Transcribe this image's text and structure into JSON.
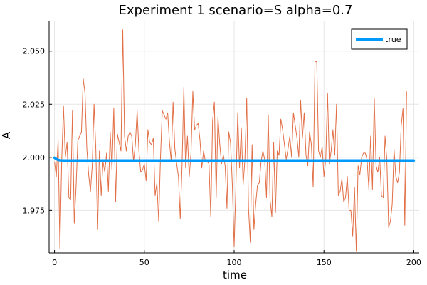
{
  "chart_data": {
    "type": "line",
    "title": "Experiment 1  scenario=S  alpha=0.7",
    "xlabel": "time",
    "ylabel": "A",
    "xlim": [
      -3,
      203
    ],
    "ylim": [
      1.955,
      2.064
    ],
    "x_ticks": [
      0,
      50,
      100,
      150,
      200
    ],
    "x_tick_labels": [
      "0",
      "50",
      "100",
      "150",
      "200"
    ],
    "y_ticks": [
      1.975,
      2.0,
      2.025,
      2.05
    ],
    "y_tick_labels": [
      "1.975",
      "2.000",
      "2.025",
      "2.050"
    ],
    "grid": true,
    "legend_position": "top-right",
    "series": [
      {
        "name": "true",
        "color": "#009AFA",
        "x": [
          0,
          1,
          2,
          3,
          5,
          10,
          20,
          50,
          100,
          150,
          200
        ],
        "values": [
          1.9998,
          1.9992,
          1.9988,
          1.9986,
          1.9985,
          1.9985,
          1.9985,
          1.9985,
          1.9985,
          1.9985,
          1.9985
        ]
      },
      {
        "name": "",
        "color": "#E26F46",
        "x_start": 0,
        "x_step": 1,
        "values": [
          1.998,
          1.991,
          2.008,
          1.957,
          1.998,
          2.024,
          2.0,
          2.007,
          1.981,
          1.98,
          2.022,
          1.969,
          1.986,
          2.008,
          2.01,
          2.012,
          2.037,
          2.03,
          2.004,
          1.992,
          1.984,
          1.996,
          2.025,
          2.004,
          1.966,
          2.003,
          1.982,
          1.998,
          1.993,
          2.002,
          1.984,
          2.012,
          1.994,
          2.023,
          1.979,
          2.011,
          2.007,
          2.003,
          2.06,
          2.01,
          2.003,
          2.01,
          2.012,
          2.01,
          1.998,
          2.006,
          2.022,
          2.003,
          1.993,
          1.994,
          1.997,
          1.989,
          2.013,
          2.007,
          2.006,
          2.009,
          1.982,
          1.988,
          1.97,
          2.0,
          2.022,
          2.02,
          2.018,
          2.021,
          2.007,
          1.998,
          2.026,
          2.004,
          1.997,
          1.991,
          1.971,
          1.996,
          2.033,
          1.995,
          2.01,
          1.991,
          2.002,
          2.031,
          2.013,
          2.015,
          2.016,
          2.008,
          1.995,
          2.003,
          1.998,
          1.998,
          1.997,
          1.972,
          2.017,
          2.026,
          1.981,
          2.019,
          2.006,
          1.997,
          2.001,
          1.996,
          1.976,
          2.012,
          2.007,
          1.987,
          1.958,
          1.987,
          2.021,
          1.995,
          2.014,
          1.987,
          1.999,
          2.028,
          1.976,
          1.96,
          2.006,
          1.966,
          1.978,
          1.987,
          1.988,
          1.998,
          2.003,
          1.999,
          1.981,
          2.02,
          1.98,
          1.972,
          2.007,
          1.974,
          2.003,
          2.001,
          2.018,
          2.013,
          2.006,
          1.999,
          2.004,
          2.01,
          2.0,
          2.021,
          2.015,
          2.009,
          2.0,
          2.027,
          2.009,
          2.021,
          2.001,
          1.996,
          2.012,
          2.006,
          1.986,
          2.045,
          2.045,
          2.003,
          2.0,
          2.005,
          1.991,
          1.999,
          2.03,
          1.997,
          2.003,
          2.013,
          2.001,
          2.025,
          1.982,
          1.984,
          1.99,
          1.979,
          1.981,
          1.991,
          1.975,
          1.975,
          1.963,
          1.986,
          1.956,
          1.996,
          1.992,
          2.0,
          2.002,
          2.002,
          1.999,
          1.985,
          2.01,
          1.985,
          2.028,
          1.996,
          1.993,
          2.0,
          1.982,
          1.981,
          2.01,
          1.999,
          1.967,
          1.97,
          1.978,
          2.004,
          1.991,
          1.988,
          1.993,
          2.015,
          2.023,
          1.968,
          2.031
        ]
      }
    ]
  }
}
